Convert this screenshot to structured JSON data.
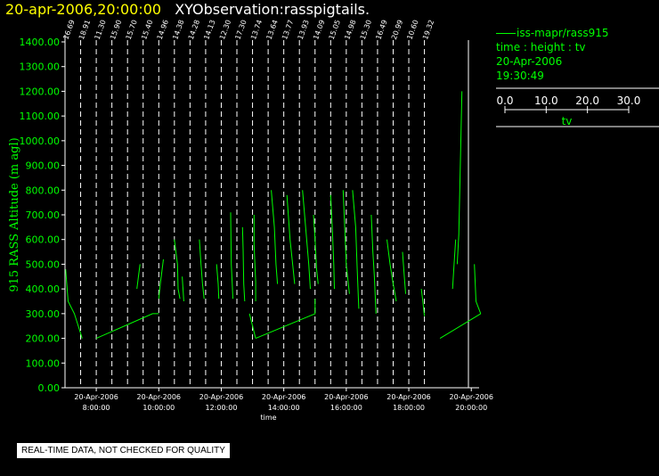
{
  "header": {
    "datetime": "20-apr-2006,20:00:00",
    "subtitle": "XYObservation:rasspigtails."
  },
  "legend": {
    "series_label": "iss-mapr/rass915",
    "axes_desc": "time : height : tv",
    "date": "20-Apr-2006",
    "time": "19:30:49",
    "scale_ticks": [
      "0.0",
      "10.0",
      "20.0",
      "30.0"
    ],
    "scale_label": "tv"
  },
  "notice": "REAL-TIME DATA, NOT CHECKED FOR QUALITY",
  "colors": {
    "background": "#000000",
    "axis": "#ffffff",
    "data": "#00ff00",
    "title_date": "#ffff00",
    "title_text": "#ffffff"
  },
  "chart_data": {
    "type": "line",
    "title": "",
    "ylabel": "915 RASS Altitude (m agl)",
    "xlabel": "time",
    "ylim": [
      0,
      1400
    ],
    "yticks": [
      "0.00",
      "100.00",
      "200.00",
      "300.00",
      "400.00",
      "500.00",
      "600.00",
      "700.00",
      "800.00",
      "900.00",
      "1000.00",
      "1100.00",
      "1200.00",
      "1300.00",
      "1400.00"
    ],
    "xlim_hours": [
      7.0,
      20.25
    ],
    "xticks": [
      {
        "hour": 8,
        "date": "20-Apr-2006",
        "time": "8:00:00"
      },
      {
        "hour": 10,
        "date": "20-Apr-2006",
        "time": "10:00:00"
      },
      {
        "hour": 12,
        "date": "20-Apr-2006",
        "time": "12:00:00"
      },
      {
        "hour": 14,
        "date": "20-Apr-2006",
        "time": "14:00:00"
      },
      {
        "hour": 16,
        "date": "20-Apr-2006",
        "time": "16:00:00"
      },
      {
        "hour": 18,
        "date": "20-Apr-2006",
        "time": "18:00:00"
      },
      {
        "hour": 20,
        "date": "20-Apr-2006",
        "time": "20:00:00"
      }
    ],
    "tv_units_per_hour": 20,
    "profiles": [
      {
        "hour": 7.0,
        "label": "16.69",
        "tv": [
          15.5,
          16.2,
          16.8,
          17.4,
          18.0,
          18.6,
          19.3
        ],
        "heights": [
          500,
          400,
          350,
          300,
          250,
          200,
          180
        ]
      },
      {
        "hour": 7.5,
        "label": "18.91",
        "tv": [],
        "heights": []
      },
      {
        "hour": 8.0,
        "label": "11.30",
        "tv": [],
        "heights": []
      },
      {
        "hour": 8.5,
        "label": "15.90",
        "tv": [],
        "heights": []
      },
      {
        "hour": 9.0,
        "label": "15.70",
        "tv": [
          14.5,
          14.5,
          14.6
        ],
        "heights": [
          300,
          400,
          500
        ]
      },
      {
        "hour": 9.5,
        "label": "15.40",
        "tv": [],
        "heights": []
      },
      {
        "hour": 10.0,
        "label": "14.96",
        "tv": [
          14.8,
          15.0,
          15.2
        ],
        "heights": [
          350,
          450,
          520
        ]
      },
      {
        "hour": 10.5,
        "label": "14.38",
        "tv": [
          14.1,
          14.2,
          14.4,
          14.6
        ],
        "heights": [
          600,
          500,
          420,
          370
        ]
      },
      {
        "hour": 11.0,
        "label": "14.28",
        "tv": [
          14.0,
          14.2,
          14.4,
          14.6,
          15.0
        ],
        "heights": [
          600,
          520,
          440,
          400,
          310
        ]
      },
      {
        "hour": 11.5,
        "label": "14.13",
        "tv": [
          14.0,
          14.3,
          14.6
        ],
        "heights": [
          500,
          420,
          330
        ]
      },
      {
        "hour": 12.0,
        "label": "12.30",
        "tv": [
          12.0,
          12.3,
          12.5
        ],
        "heights": [
          500,
          420,
          360
        ]
      },
      {
        "hour": 12.5,
        "label": "17.30",
        "tv": [
          17.0,
          17.3,
          17.6
        ],
        "heights": [
          600,
          500,
          400
        ]
      },
      {
        "hour": 13.0,
        "label": "13.74",
        "tv": [
          13.5,
          13.8,
          14.0
        ],
        "heights": [
          650,
          500,
          400
        ]
      },
      {
        "hour": 13.5,
        "label": "13.64",
        "tv": [],
        "heights": []
      },
      {
        "hour": 14.0,
        "label": "13.77",
        "tv": [
          13.2,
          13.5,
          13.8
        ],
        "heights": [
          800,
          650,
          500
        ]
      },
      {
        "hour": 14.5,
        "label": "13.93",
        "tv": [
          13.0,
          13.5,
          13.9
        ],
        "heights": [
          750,
          600,
          450
        ]
      },
      {
        "hour": 15.0,
        "label": "14.09",
        "tv": [
          12.5,
          13.0,
          13.5
        ],
        "heights": [
          800,
          620,
          450
        ]
      },
      {
        "hour": 15.5,
        "label": "15.05",
        "tv": [
          14.0,
          14.5,
          15.0
        ],
        "heights": [
          800,
          600,
          420
        ]
      },
      {
        "hour": 16.0,
        "label": "14.98",
        "tv": [
          13.5,
          14.2,
          15.0
        ],
        "heights": [
          800,
          600,
          400
        ]
      },
      {
        "hour": 16.5,
        "label": "15.30",
        "tv": [
          14.0,
          14.8,
          15.5
        ],
        "heights": [
          700,
          500,
          330
        ]
      },
      {
        "hour": 17.0,
        "label": "16.49",
        "tv": [
          15.5,
          16.3,
          17.0
        ],
        "heights": [
          600,
          450,
          330
        ]
      },
      {
        "hour": 17.5,
        "label": "20.99",
        "tv": [
          20.0,
          20.6,
          21.2
        ],
        "heights": [
          500,
          380,
          300
        ]
      },
      {
        "hour": 18.0,
        "label": "10.60",
        "tv": [],
        "heights": []
      },
      {
        "hour": 18.5,
        "label": "19.32",
        "tv": [],
        "heights": []
      }
    ],
    "traces": [
      {
        "points": [
          [
            7.02,
            480
          ],
          [
            7.1,
            350
          ],
          [
            7.3,
            300
          ],
          [
            7.55,
            200
          ]
        ]
      },
      {
        "points": [
          [
            8.0,
            200
          ],
          [
            9.8,
            300
          ],
          [
            9.9,
            300
          ],
          [
            10.0,
            300
          ]
        ]
      },
      {
        "points": [
          [
            9.3,
            400
          ],
          [
            9.4,
            500
          ]
        ]
      },
      {
        "points": [
          [
            10.0,
            360
          ],
          [
            10.05,
            420
          ],
          [
            10.15,
            520
          ]
        ]
      },
      {
        "points": [
          [
            10.5,
            600
          ],
          [
            10.6,
            500
          ],
          [
            10.62,
            400
          ],
          [
            10.68,
            360
          ]
        ]
      },
      {
        "points": [
          [
            10.75,
            450
          ],
          [
            10.8,
            350
          ]
        ]
      },
      {
        "points": [
          [
            11.3,
            600
          ],
          [
            11.35,
            500
          ],
          [
            11.4,
            420
          ],
          [
            11.45,
            360
          ]
        ]
      },
      {
        "points": [
          [
            11.85,
            500
          ],
          [
            11.9,
            420
          ],
          [
            11.92,
            360
          ]
        ]
      },
      {
        "points": [
          [
            12.3,
            710
          ],
          [
            12.32,
            500
          ],
          [
            12.35,
            420
          ],
          [
            12.37,
            360
          ]
        ]
      },
      {
        "points": [
          [
            12.68,
            650
          ],
          [
            12.7,
            560
          ],
          [
            12.72,
            420
          ],
          [
            12.75,
            350
          ]
        ]
      },
      {
        "points": [
          [
            13.05,
            700
          ],
          [
            13.05,
            580
          ],
          [
            13.1,
            430
          ],
          [
            13.1,
            350
          ]
        ]
      },
      {
        "points": [
          [
            13.1,
            200
          ],
          [
            15.0,
            300
          ],
          [
            15.0,
            360
          ]
        ]
      },
      {
        "points": [
          [
            12.9,
            300
          ],
          [
            13.1,
            200
          ]
        ]
      },
      {
        "points": [
          [
            13.6,
            800
          ],
          [
            13.7,
            650
          ],
          [
            13.75,
            500
          ],
          [
            13.8,
            420
          ]
        ]
      },
      {
        "points": [
          [
            14.1,
            780
          ],
          [
            14.2,
            600
          ],
          [
            14.3,
            480
          ],
          [
            14.35,
            420
          ]
        ]
      },
      {
        "points": [
          [
            14.6,
            800
          ],
          [
            14.7,
            650
          ],
          [
            14.8,
            500
          ],
          [
            14.85,
            400
          ]
        ]
      },
      {
        "points": [
          [
            14.95,
            700
          ],
          [
            15.0,
            600
          ],
          [
            15.05,
            480
          ],
          [
            15.1,
            420
          ]
        ]
      },
      {
        "points": [
          [
            15.5,
            780
          ],
          [
            15.55,
            650
          ],
          [
            15.6,
            500
          ],
          [
            15.62,
            400
          ]
        ]
      },
      {
        "points": [
          [
            15.9,
            800
          ],
          [
            15.95,
            650
          ],
          [
            16.0,
            500
          ],
          [
            16.1,
            380
          ]
        ]
      },
      {
        "points": [
          [
            16.2,
            800
          ],
          [
            16.3,
            650
          ],
          [
            16.35,
            480
          ],
          [
            16.4,
            320
          ]
        ]
      },
      {
        "points": [
          [
            16.8,
            700
          ],
          [
            16.85,
            550
          ],
          [
            16.9,
            450
          ],
          [
            16.95,
            300
          ]
        ]
      },
      {
        "points": [
          [
            17.3,
            600
          ],
          [
            17.4,
            500
          ],
          [
            17.5,
            420
          ],
          [
            17.6,
            350
          ]
        ]
      },
      {
        "points": [
          [
            17.8,
            550
          ],
          [
            17.85,
            460
          ],
          [
            17.9,
            380
          ]
        ]
      },
      {
        "points": [
          [
            18.4,
            400
          ],
          [
            18.45,
            350
          ],
          [
            18.5,
            290
          ]
        ]
      },
      {
        "points": [
          [
            19.0,
            200
          ],
          [
            20.3,
            300
          ]
        ]
      },
      {
        "points": [
          [
            19.4,
            400
          ],
          [
            19.45,
            500
          ],
          [
            19.5,
            600
          ]
        ]
      },
      {
        "points": [
          [
            19.7,
            1200
          ],
          [
            19.65,
            900
          ],
          [
            19.6,
            620
          ],
          [
            19.55,
            500
          ]
        ]
      },
      {
        "points": [
          [
            20.1,
            500
          ],
          [
            20.15,
            350
          ],
          [
            20.3,
            300
          ]
        ]
      }
    ]
  }
}
